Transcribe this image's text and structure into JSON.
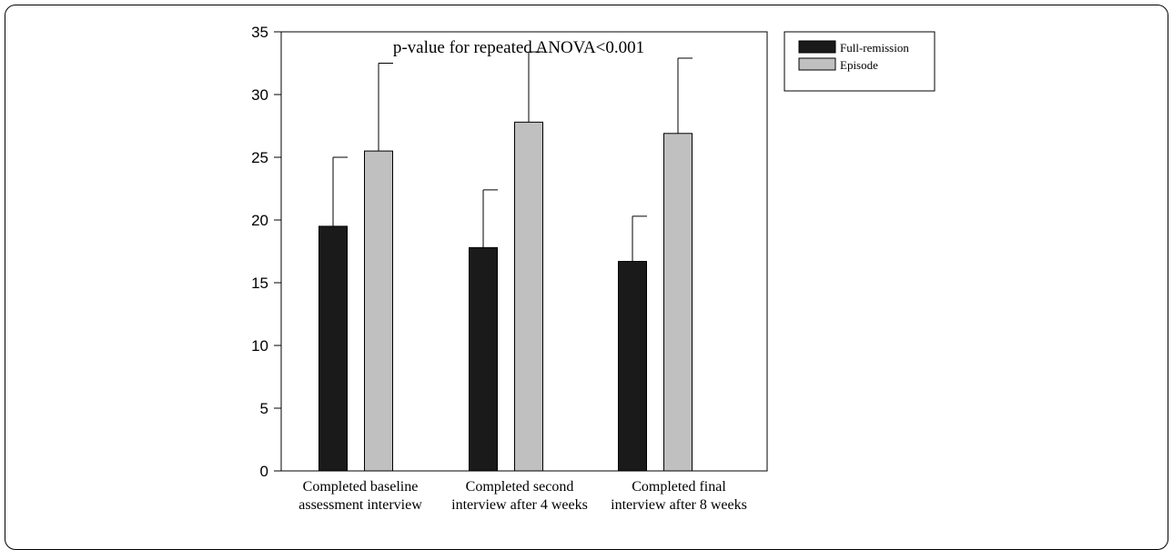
{
  "chart_data": {
    "type": "bar",
    "title": "p-value for repeated ANOVA<0.001",
    "xlabel": "",
    "ylabel": "",
    "ylim": [
      0,
      35
    ],
    "yticks": [
      0,
      5,
      10,
      15,
      20,
      25,
      30,
      35
    ],
    "grid": false,
    "legend_position": "top-right",
    "categories": [
      [
        "Completed baseline",
        "assessment interview"
      ],
      [
        "Completed second",
        "interview after 4 weeks"
      ],
      [
        "Completed final",
        "interview after 8 weeks"
      ]
    ],
    "series": [
      {
        "name": "Full-remission",
        "color": "#1a1a1a",
        "values": [
          19.5,
          17.8,
          16.7
        ],
        "error_upper": [
          25.0,
          22.4,
          20.3
        ]
      },
      {
        "name": "Episode",
        "color": "#c0c0c0",
        "values": [
          25.5,
          27.8,
          26.9
        ],
        "error_upper": [
          32.5,
          33.4,
          32.9
        ]
      }
    ]
  }
}
